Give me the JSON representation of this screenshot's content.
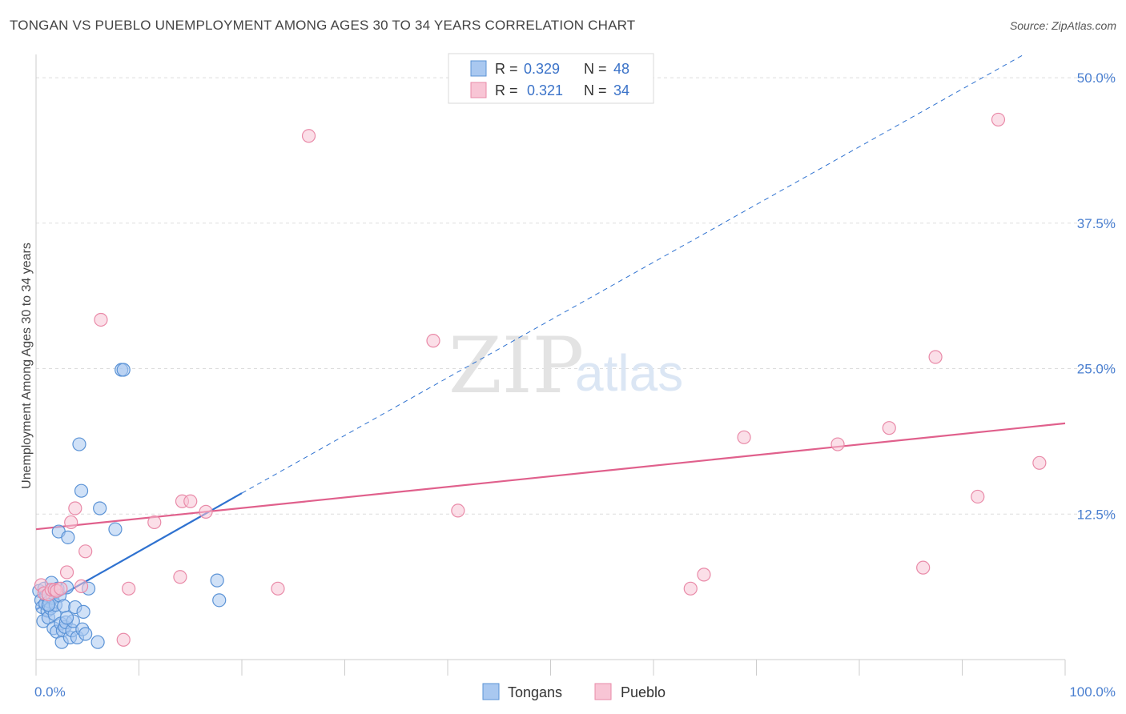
{
  "title": "TONGAN VS PUEBLO UNEMPLOYMENT AMONG AGES 30 TO 34 YEARS CORRELATION CHART",
  "source": "Source: ZipAtlas.com",
  "watermark": {
    "zip": "ZIP",
    "atlas": "atlas"
  },
  "legend_top": [
    {
      "r_label": "R =",
      "r_value": "0.329",
      "n_label": "N =",
      "n_value": "48"
    },
    {
      "r_label": "R =",
      "r_value": "0.321",
      "n_label": "N =",
      "n_value": "34"
    }
  ],
  "legend_bottom": [
    "Tongans",
    "Pueblo"
  ],
  "colors": {
    "tongans_fill": "#a9c8f0",
    "tongans_stroke": "#5b93d6",
    "tongans_line": "#2f72d0",
    "pueblo_fill": "#f8c5d5",
    "pueblo_stroke": "#e98aa8",
    "pueblo_line": "#e0608c",
    "grid": "#dddddd",
    "tick_label": "#4a7fd0"
  },
  "chart_data": {
    "type": "scatter",
    "title": "TONGAN VS PUEBLO UNEMPLOYMENT AMONG AGES 30 TO 34 YEARS CORRELATION CHART",
    "xlabel": "",
    "ylabel": "Unemployment Among Ages 30 to 34 years",
    "xlim": [
      0,
      100
    ],
    "ylim": [
      0,
      52
    ],
    "x_tick_labels": [
      "0.0%",
      "100.0%"
    ],
    "y_ticks": [
      12.5,
      25.0,
      37.5,
      50.0
    ],
    "y_tick_labels": [
      "12.5%",
      "25.0%",
      "37.5%",
      "50.0%"
    ],
    "series": [
      {
        "name": "Tongans",
        "R": 0.329,
        "N": 48,
        "points": [
          [
            0.3,
            5.9
          ],
          [
            0.5,
            5.1
          ],
          [
            0.6,
            4.5
          ],
          [
            0.7,
            3.3
          ],
          [
            0.8,
            6.1
          ],
          [
            0.9,
            4.8
          ],
          [
            1.0,
            5.5
          ],
          [
            1.1,
            4.2
          ],
          [
            1.2,
            3.6
          ],
          [
            1.3,
            5.0
          ],
          [
            1.4,
            4.4
          ],
          [
            1.5,
            6.6
          ],
          [
            1.6,
            5.3
          ],
          [
            1.7,
            2.7
          ],
          [
            1.8,
            3.9
          ],
          [
            1.9,
            4.7
          ],
          [
            2.0,
            2.4
          ],
          [
            2.1,
            6.1
          ],
          [
            2.2,
            11.0
          ],
          [
            2.3,
            5.5
          ],
          [
            2.4,
            3.1
          ],
          [
            2.5,
            1.5
          ],
          [
            2.6,
            2.5
          ],
          [
            2.7,
            4.6
          ],
          [
            2.8,
            2.8
          ],
          [
            2.9,
            3.2
          ],
          [
            3.0,
            6.2
          ],
          [
            3.1,
            10.5
          ],
          [
            3.3,
            1.9
          ],
          [
            3.5,
            2.5
          ],
          [
            3.6,
            3.3
          ],
          [
            3.8,
            4.5
          ],
          [
            4.0,
            1.9
          ],
          [
            4.2,
            18.5
          ],
          [
            4.4,
            14.5
          ],
          [
            4.5,
            2.6
          ],
          [
            4.6,
            4.1
          ],
          [
            4.8,
            2.2
          ],
          [
            5.1,
            6.1
          ],
          [
            6.0,
            1.5
          ],
          [
            6.2,
            13.0
          ],
          [
            7.7,
            11.2
          ],
          [
            8.3,
            24.9
          ],
          [
            8.5,
            24.9
          ],
          [
            17.6,
            6.8
          ],
          [
            17.8,
            5.1
          ],
          [
            1.2,
            4.7
          ],
          [
            3.0,
            3.6
          ]
        ]
      },
      {
        "name": "Pueblo",
        "R": 0.321,
        "N": 34,
        "points": [
          [
            0.5,
            6.4
          ],
          [
            0.8,
            5.7
          ],
          [
            1.2,
            5.6
          ],
          [
            1.5,
            6.0
          ],
          [
            1.8,
            6.0
          ],
          [
            2.0,
            5.9
          ],
          [
            2.4,
            6.1
          ],
          [
            3.0,
            7.5
          ],
          [
            3.4,
            11.8
          ],
          [
            3.8,
            13.0
          ],
          [
            4.4,
            6.3
          ],
          [
            4.8,
            9.3
          ],
          [
            6.3,
            29.2
          ],
          [
            8.5,
            1.7
          ],
          [
            9.0,
            6.1
          ],
          [
            11.5,
            11.8
          ],
          [
            14.0,
            7.1
          ],
          [
            14.2,
            13.6
          ],
          [
            15.0,
            13.6
          ],
          [
            16.5,
            12.7
          ],
          [
            23.5,
            6.1
          ],
          [
            26.5,
            45.0
          ],
          [
            38.6,
            27.4
          ],
          [
            41.0,
            12.8
          ],
          [
            63.6,
            6.1
          ],
          [
            64.9,
            7.3
          ],
          [
            68.8,
            19.1
          ],
          [
            77.9,
            18.5
          ],
          [
            82.9,
            19.9
          ],
          [
            86.2,
            7.9
          ],
          [
            87.4,
            26.0
          ],
          [
            91.5,
            14.0
          ],
          [
            93.5,
            46.4
          ],
          [
            97.5,
            16.9
          ]
        ]
      }
    ],
    "trend_lines": [
      {
        "series": "Tongans",
        "x": [
          0,
          20
        ],
        "y": [
          4.3,
          14.3
        ],
        "style": "solid"
      },
      {
        "series": "Tongans",
        "x": [
          20,
          96
        ],
        "y": [
          14.3,
          52.0
        ],
        "style": "dashed"
      },
      {
        "series": "Pueblo",
        "x": [
          0,
          100
        ],
        "y": [
          11.2,
          20.3
        ],
        "style": "solid"
      }
    ]
  }
}
